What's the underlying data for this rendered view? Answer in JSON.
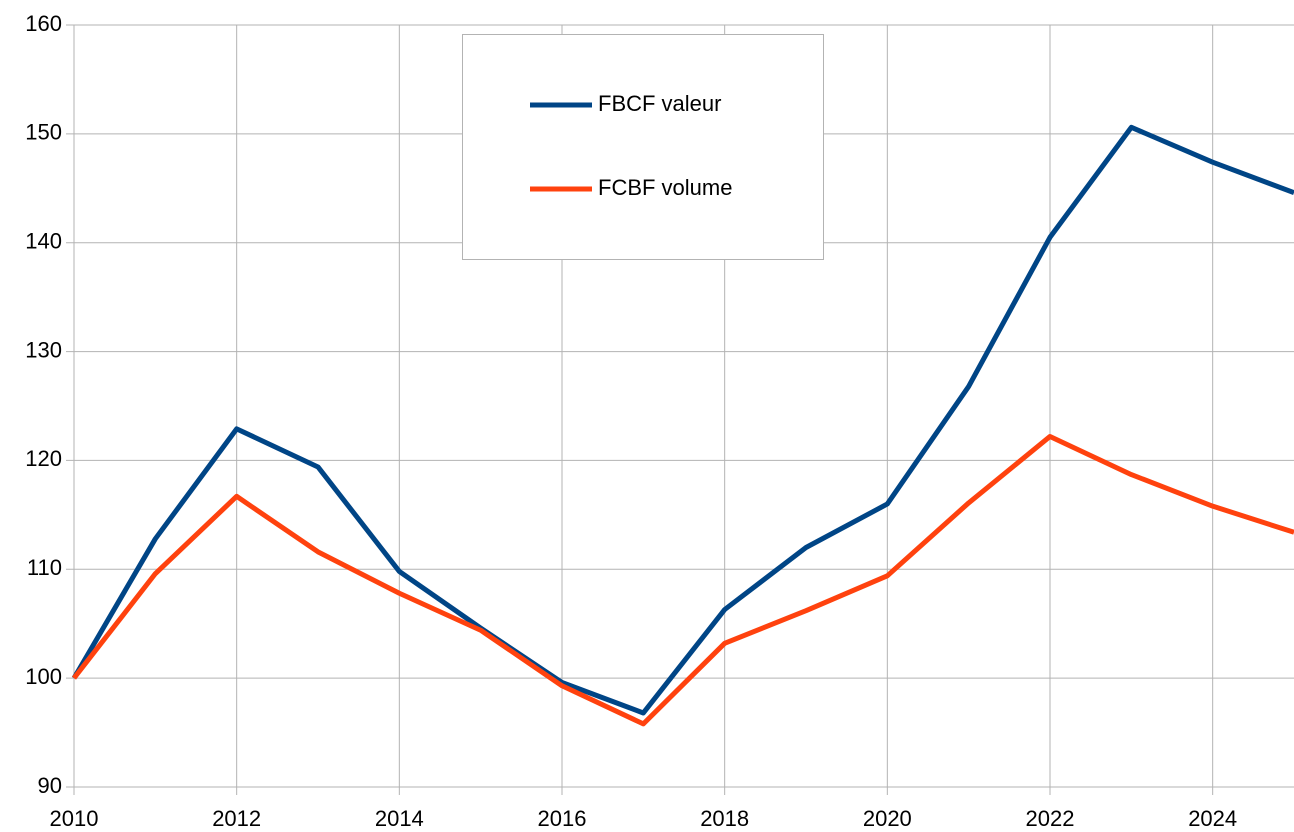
{
  "chart_data": {
    "type": "line",
    "x": [
      2010,
      2011,
      2012,
      2013,
      2014,
      2015,
      2016,
      2017,
      2018,
      2019,
      2020,
      2021,
      2022,
      2023,
      2024,
      2025
    ],
    "series": [
      {
        "name": "FBCF valeur",
        "color": "#004586",
        "values": [
          100,
          112.8,
          122.9,
          119.4,
          109.8,
          104.6,
          99.6,
          96.8,
          106.3,
          112,
          116,
          126.8,
          140.5,
          150.6,
          147.4,
          144.6
        ]
      },
      {
        "name": "FCBF volume",
        "color": "#ff420e",
        "values": [
          100,
          109.6,
          116.7,
          111.6,
          107.8,
          104.4,
          99.3,
          95.8,
          103.2,
          106.2,
          109.4,
          116.1,
          122.2,
          118.7,
          115.8,
          113.4
        ]
      }
    ],
    "xlim": [
      2010,
      2025
    ],
    "xticks": [
      2010,
      2012,
      2014,
      2016,
      2018,
      2020,
      2022,
      2024
    ],
    "ylim": [
      90,
      160
    ],
    "yticks": [
      90,
      100,
      110,
      120,
      130,
      140,
      150,
      160
    ],
    "grid": true,
    "legend": "top"
  }
}
